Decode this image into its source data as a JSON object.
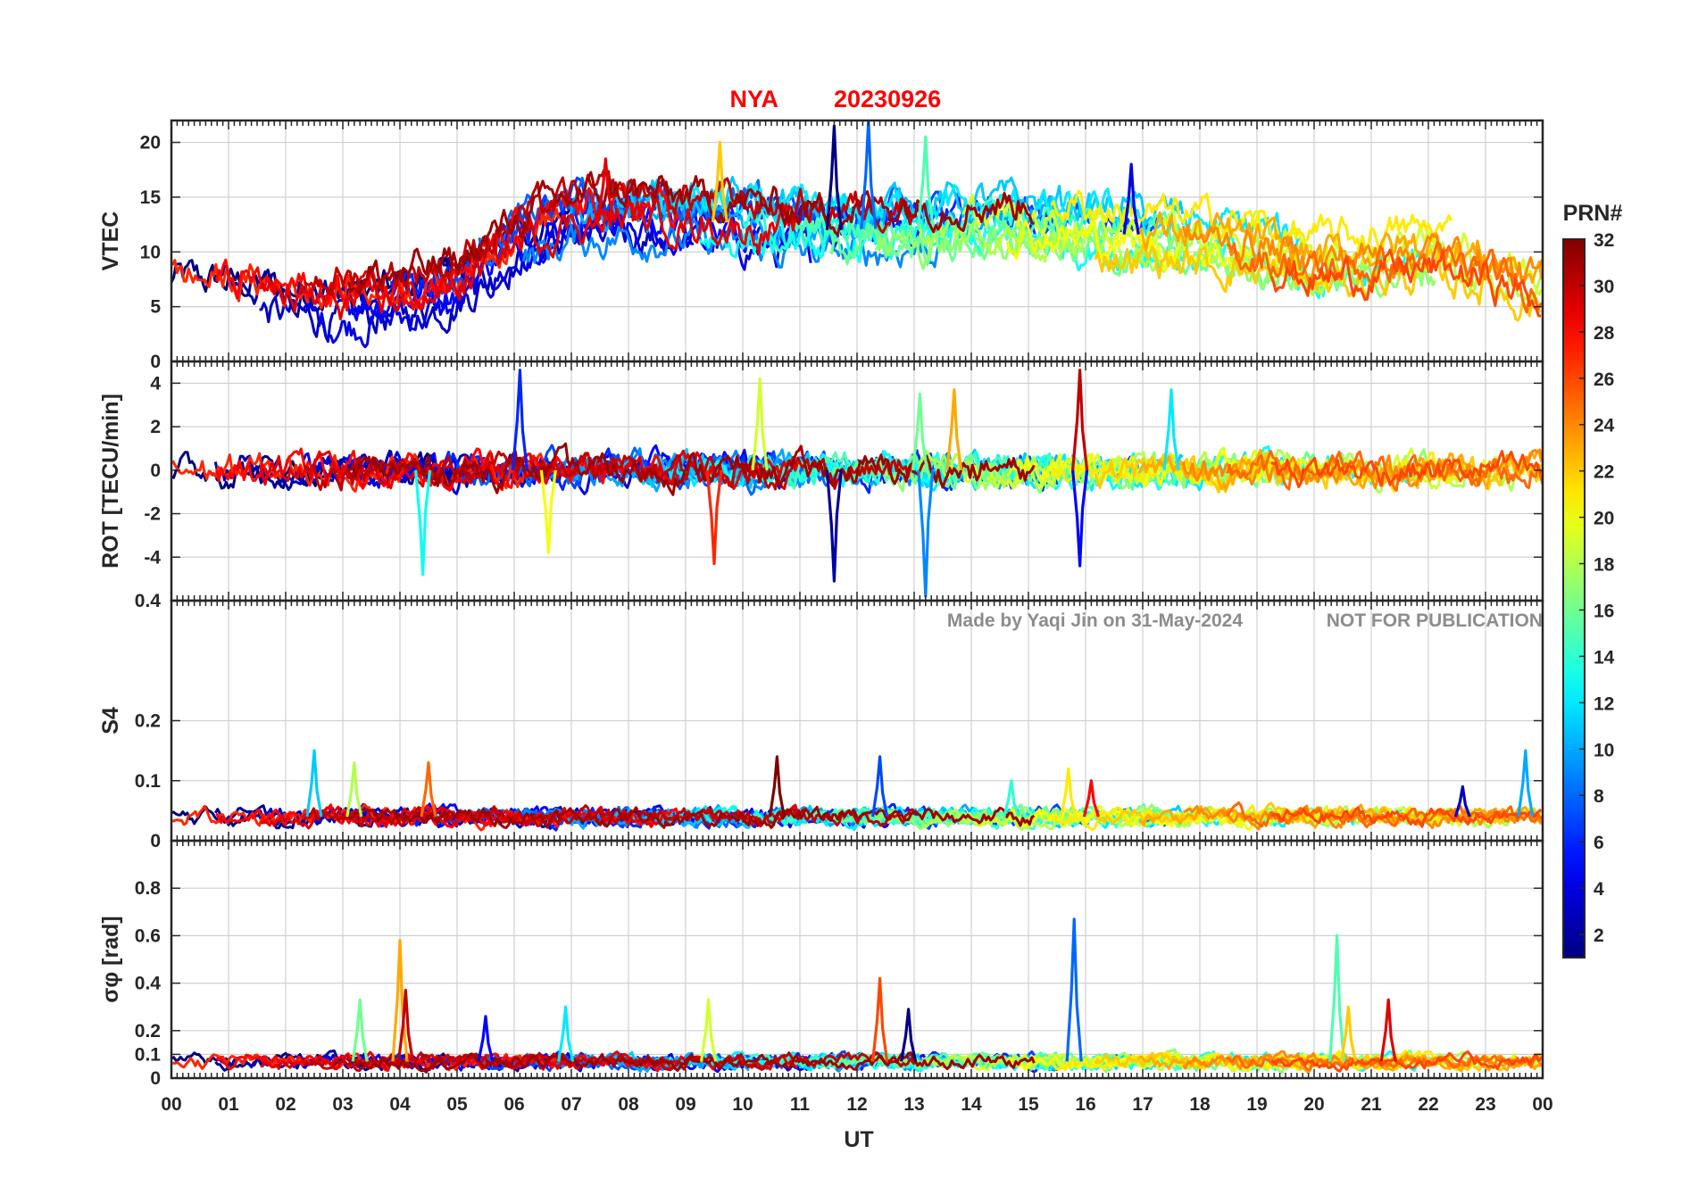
{
  "chart_data": {
    "type": "line",
    "title_station": "NYA",
    "title_date": "20230926",
    "xlabel": "UT",
    "x_ticks": [
      "00",
      "01",
      "02",
      "03",
      "04",
      "05",
      "06",
      "07",
      "08",
      "09",
      "10",
      "11",
      "12",
      "13",
      "14",
      "15",
      "16",
      "17",
      "18",
      "19",
      "20",
      "21",
      "22",
      "23",
      "00"
    ],
    "xlim_hours": [
      0,
      24
    ],
    "watermark_left": "Made by Yaqi Jin on 31-May-2024",
    "watermark_right": "NOT FOR PUBLICATION",
    "colorbar": {
      "label": "PRN#",
      "colormap": "jet",
      "range": [
        1,
        32
      ],
      "ticks": [
        "2",
        "4",
        "6",
        "8",
        "10",
        "12",
        "14",
        "16",
        "18",
        "20",
        "22",
        "24",
        "26",
        "28",
        "30",
        "32"
      ]
    },
    "panels": [
      {
        "id": "vtec",
        "ylabel": "VTEC",
        "ylim": [
          0,
          22
        ],
        "y_ticks": [
          0,
          5,
          10,
          15,
          20
        ],
        "y_tick_labels": [
          "0",
          "5",
          "10",
          "15",
          "20"
        ],
        "baseline_trend": {
          "hours": [
            0,
            1,
            2,
            3,
            4,
            5,
            6,
            7,
            8,
            9,
            10,
            11,
            12,
            13,
            14,
            15,
            16,
            17,
            18,
            19,
            20,
            21,
            22,
            23,
            24
          ],
          "values": [
            7,
            6.5,
            6,
            5.5,
            6,
            7,
            11,
            13,
            13.5,
            13,
            12.5,
            12,
            12,
            12.5,
            12.5,
            12.5,
            12,
            11.5,
            11,
            10.5,
            9,
            9.5,
            10,
            9,
            7
          ]
        },
        "noise_amplitude": 1.5,
        "spikes": [
          {
            "hour": 11.6,
            "value": 21.5
          },
          {
            "hour": 12.2,
            "value": 22
          },
          {
            "hour": 13.2,
            "value": 20.5
          },
          {
            "hour": 9.6,
            "value": 20
          },
          {
            "hour": 7.6,
            "value": 18.5
          },
          {
            "hour": 16.8,
            "value": 18
          }
        ]
      },
      {
        "id": "rot",
        "ylabel": "ROT [TECU/min]",
        "ylim": [
          -6,
          5
        ],
        "y_ticks": [
          -4,
          -2,
          0,
          2,
          4
        ],
        "y_tick_labels": [
          "-4",
          "-2",
          "0",
          "2",
          "4"
        ],
        "baseline_trend": {
          "hours": [
            0,
            24
          ],
          "values": [
            0,
            0
          ]
        },
        "noise_amplitude": 0.6,
        "spikes": [
          {
            "hour": 6.1,
            "value": 4.6
          },
          {
            "hour": 4.4,
            "value": -4.8
          },
          {
            "hour": 6.6,
            "value": -3.8
          },
          {
            "hour": 9.5,
            "value": -4.3
          },
          {
            "hour": 11.6,
            "value": -5.1
          },
          {
            "hour": 13.2,
            "value": -5.8
          },
          {
            "hour": 13.1,
            "value": 3.5
          },
          {
            "hour": 13.7,
            "value": 3.7
          },
          {
            "hour": 15.9,
            "value": 4.6
          },
          {
            "hour": 15.9,
            "value": -4.4
          },
          {
            "hour": 17.5,
            "value": 3.7
          },
          {
            "hour": 10.3,
            "value": 4.2
          }
        ]
      },
      {
        "id": "s4",
        "ylabel": "S4",
        "ylim": [
          0,
          0.4
        ],
        "y_ticks": [
          0,
          0.1,
          0.2,
          0.4
        ],
        "y_tick_labels": [
          "0",
          "0.1",
          "0.2",
          "0.4"
        ],
        "baseline_trend": {
          "hours": [
            0,
            24
          ],
          "values": [
            0.04,
            0.04
          ]
        },
        "noise_amplitude": 0.012,
        "spikes": [
          {
            "hour": 2.5,
            "value": 0.15
          },
          {
            "hour": 3.2,
            "value": 0.13
          },
          {
            "hour": 4.5,
            "value": 0.13
          },
          {
            "hour": 10.6,
            "value": 0.14
          },
          {
            "hour": 12.4,
            "value": 0.14
          },
          {
            "hour": 14.7,
            "value": 0.1
          },
          {
            "hour": 15.7,
            "value": 0.12
          },
          {
            "hour": 16.1,
            "value": 0.1
          },
          {
            "hour": 22.6,
            "value": 0.09
          },
          {
            "hour": 23.7,
            "value": 0.15
          }
        ]
      },
      {
        "id": "sigma_phi",
        "ylabel": "σφ [rad]",
        "ylim": [
          0,
          1
        ],
        "y_ticks": [
          0,
          0.1,
          0.2,
          0.4,
          0.6,
          0.8
        ],
        "y_tick_labels": [
          "0",
          "0.1",
          "0.2",
          "0.4",
          "0.6",
          "0.8"
        ],
        "baseline_trend": {
          "hours": [
            0,
            24
          ],
          "values": [
            0.07,
            0.07
          ]
        },
        "noise_amplitude": 0.025,
        "spikes": [
          {
            "hour": 3.3,
            "value": 0.33
          },
          {
            "hour": 4.0,
            "value": 0.58
          },
          {
            "hour": 4.1,
            "value": 0.37
          },
          {
            "hour": 5.5,
            "value": 0.26
          },
          {
            "hour": 6.9,
            "value": 0.3
          },
          {
            "hour": 9.4,
            "value": 0.33
          },
          {
            "hour": 12.4,
            "value": 0.42
          },
          {
            "hour": 12.9,
            "value": 0.29
          },
          {
            "hour": 15.8,
            "value": 0.67
          },
          {
            "hour": 20.4,
            "value": 0.6
          },
          {
            "hour": 20.6,
            "value": 0.3
          },
          {
            "hour": 21.3,
            "value": 0.33
          }
        ]
      }
    ],
    "series_count": 31
  }
}
